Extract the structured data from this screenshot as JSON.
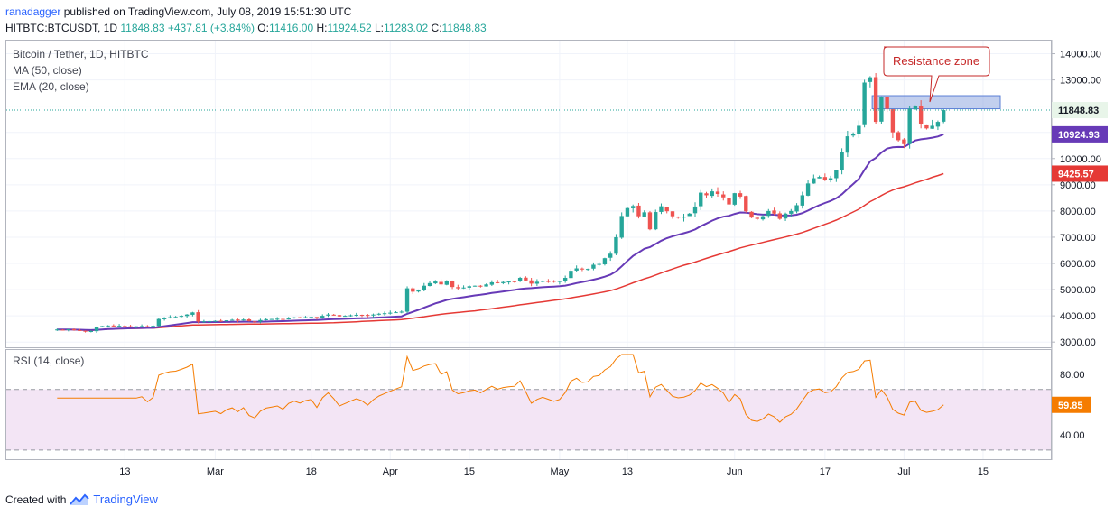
{
  "header": {
    "user": "ranadagger",
    "published": " published on TradingView.com, July 08, 2019 15:51:30 UTC"
  },
  "ohlc": {
    "symbol": "HITBTC:BTCUSDT, 1D",
    "last": "11848.83",
    "change": "+437.81 (+3.84%)",
    "o_label": "O:",
    "o": "11416.00",
    "h_label": "H:",
    "h": "11924.52",
    "l_label": "L:",
    "l": "11283.02",
    "c_label": "C:",
    "c": "11848.83"
  },
  "legend": {
    "title": "Bitcoin / Tether, 1D, HITBTC",
    "ma": "MA (50, close)",
    "ema": "EMA (20, close)",
    "rsi": "RSI (14, close)"
  },
  "annotation": {
    "text": "Resistance zone"
  },
  "colors": {
    "up": "#26a69a",
    "down": "#ef5350",
    "ema": "#673ab7",
    "ma": "#e53935",
    "rsi": "#f57c00",
    "rsi_band": "#f3e5f5",
    "zone": "#90a8e0",
    "accent": "#2962ff"
  },
  "price_labels": {
    "last": "11848.83",
    "ema": "10924.93",
    "ma": "9425.57"
  },
  "rsi_label": "59.85",
  "footer": {
    "created": "Created with",
    "brand": "TradingView"
  },
  "chart_data": {
    "type": "candlestick",
    "title": "Bitcoin / Tether, 1D, HITBTC",
    "x_tick_labels": [
      "13",
      "Mar",
      "18",
      "Apr",
      "15",
      "May",
      "13",
      "Jun",
      "17",
      "Jul",
      "15"
    ],
    "x_tick_dates": [
      "2019-02-13",
      "2019-03-01",
      "2019-03-18",
      "2019-04-01",
      "2019-04-15",
      "2019-05-01",
      "2019-05-13",
      "2019-06-01",
      "2019-06-17",
      "2019-07-01",
      "2019-07-15"
    ],
    "y_ticks": [
      3000,
      4000,
      5000,
      6000,
      7000,
      8000,
      9000,
      10000,
      11000,
      12000,
      13000,
      14000
    ],
    "y_tick_labels": [
      "3000.00",
      "4000.00",
      "5000.00",
      "6000.00",
      "7000.00",
      "8000.00",
      "9000.00",
      "10000.00",
      "11000.00",
      "12000.00",
      "13000.00",
      "14000.00"
    ],
    "ylim": [
      2800,
      14500
    ],
    "resistance_zone": [
      11900,
      12400
    ],
    "last_close": 11848.83,
    "closes": [
      3480,
      3470,
      3490,
      3450,
      3430,
      3410,
      3420,
      3590,
      3610,
      3630,
      3600,
      3620,
      3610,
      3590,
      3600,
      3610,
      3590,
      3620,
      3880,
      3920,
      3950,
      3960,
      4000,
      4050,
      4130,
      3780,
      3790,
      3800,
      3810,
      3790,
      3830,
      3850,
      3820,
      3860,
      3800,
      3780,
      3840,
      3870,
      3880,
      3890,
      3870,
      3920,
      3940,
      3930,
      3950,
      3960,
      3920,
      4000,
      4050,
      4020,
      3980,
      4000,
      4020,
      4040,
      4030,
      4010,
      4050,
      4080,
      4100,
      4120,
      4140,
      4160,
      5050,
      4920,
      5000,
      5150,
      5250,
      5310,
      5200,
      5320,
      5100,
      5050,
      5080,
      5130,
      5150,
      5120,
      5200,
      5280,
      5250,
      5290,
      5310,
      5320,
      5450,
      5350,
      5230,
      5300,
      5340,
      5320,
      5300,
      5330,
      5450,
      5720,
      5810,
      5770,
      5790,
      5950,
      5980,
      6200,
      6370,
      7000,
      7810,
      8110,
      8190,
      7800,
      7950,
      7300,
      7960,
      8180,
      7990,
      7800,
      7750,
      7790,
      7900,
      8170,
      8700,
      8600,
      8750,
      8650,
      8520,
      8250,
      8680,
      8550,
      7990,
      7750,
      7700,
      7800,
      8000,
      7900,
      7700,
      7900,
      8000,
      8220,
      8600,
      9050,
      9250,
      9300,
      9200,
      9250,
      9550,
      10250,
      10850,
      10950,
      11250,
      12900,
      13100,
      11400,
      12350,
      11900,
      11000,
      10700,
      10550,
      11900,
      12000,
      11300,
      11150,
      11250,
      11400,
      11848.83
    ],
    "series": [
      {
        "name": "MA (50, close)",
        "last_value": 9425.57
      },
      {
        "name": "EMA (20, close)",
        "last_value": 10924.93
      },
      {
        "name": "RSI (14, close)",
        "last_value": 59.85,
        "ylim": [
          24,
          96
        ],
        "band": [
          30,
          70
        ],
        "y_ticks": [
          40,
          80
        ],
        "y_tick_labels": [
          "40.00",
          "80.00"
        ]
      }
    ]
  }
}
